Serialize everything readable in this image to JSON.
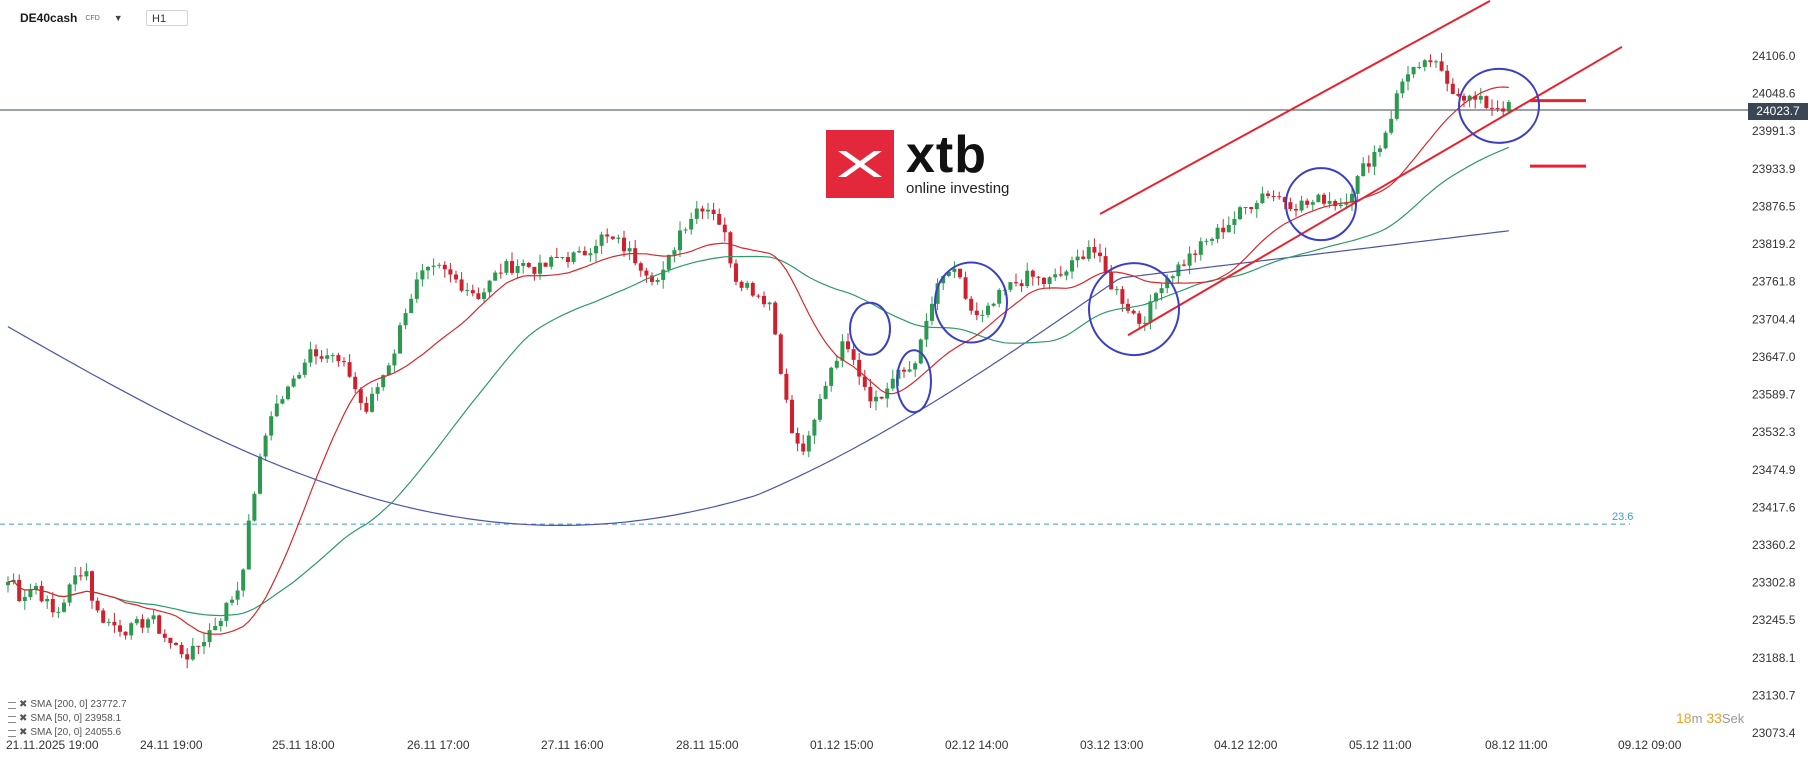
{
  "header": {
    "symbol": "DE40cash",
    "instrument_type": "CFD",
    "timeframe": "H1"
  },
  "logo": {
    "brand": "xtb",
    "tagline": "online investing",
    "color": "#e3283b"
  },
  "current_price": "24023.7",
  "fib_label": "23.6",
  "timer": {
    "minutes": "18",
    "minutes_unit": "m",
    "seconds": "33",
    "seconds_unit": "Sek"
  },
  "legend": [
    {
      "label": "SMA [200, 0] 23772.7"
    },
    {
      "label": "SMA [50, 0] 23958.1"
    },
    {
      "label": "SMA [20, 0] 24055.6"
    }
  ],
  "chart_data": {
    "type": "candlestick",
    "y_ticks": [
      "24106.0",
      "24048.6",
      "23991.3",
      "23933.9",
      "23876.5",
      "23819.2",
      "23761.8",
      "23704.4",
      "23647.0",
      "23589.7",
      "23532.3",
      "23474.9",
      "23417.6",
      "23360.2",
      "23302.8",
      "23245.5",
      "23188.1",
      "23130.7",
      "23073.4"
    ],
    "x_ticks": [
      "21.11.2025  19:00",
      "24.11  19:00",
      "25.11  18:00",
      "26.11  17:00",
      "27.11  16:00",
      "28.11  15:00",
      "01.12  15:00",
      "02.12  14:00",
      "03.12  13:00",
      "04.12  12:00",
      "05.12  11:00",
      "08.12  11:00",
      "09.12  09:00"
    ],
    "ylim": [
      23073.4,
      24106.0
    ],
    "current_price": 24023.7,
    "fib_level": 23392,
    "sma": [
      {
        "name": "SMA [200, 0]",
        "value": 23772.7,
        "color": "#4a55a8"
      },
      {
        "name": "SMA [50, 0]",
        "value": 23958.1,
        "color": "#2e9a68"
      },
      {
        "name": "SMA [20, 0]",
        "value": 24055.6,
        "color": "#d8282e"
      }
    ],
    "up_color": "#2b9a4f",
    "down_color": "#d0202e",
    "channel_color": "#e8232f",
    "circle_color": "#3b3fc4",
    "key_prices": [
      {
        "level": 24038,
        "description": "short red marker"
      },
      {
        "level": 23938,
        "description": "short red marker"
      }
    ],
    "channel": {
      "upper": [
        [
          23865,
          24190
        ]
      ],
      "lower": [
        [
          23680,
          24130
        ]
      ]
    }
  }
}
